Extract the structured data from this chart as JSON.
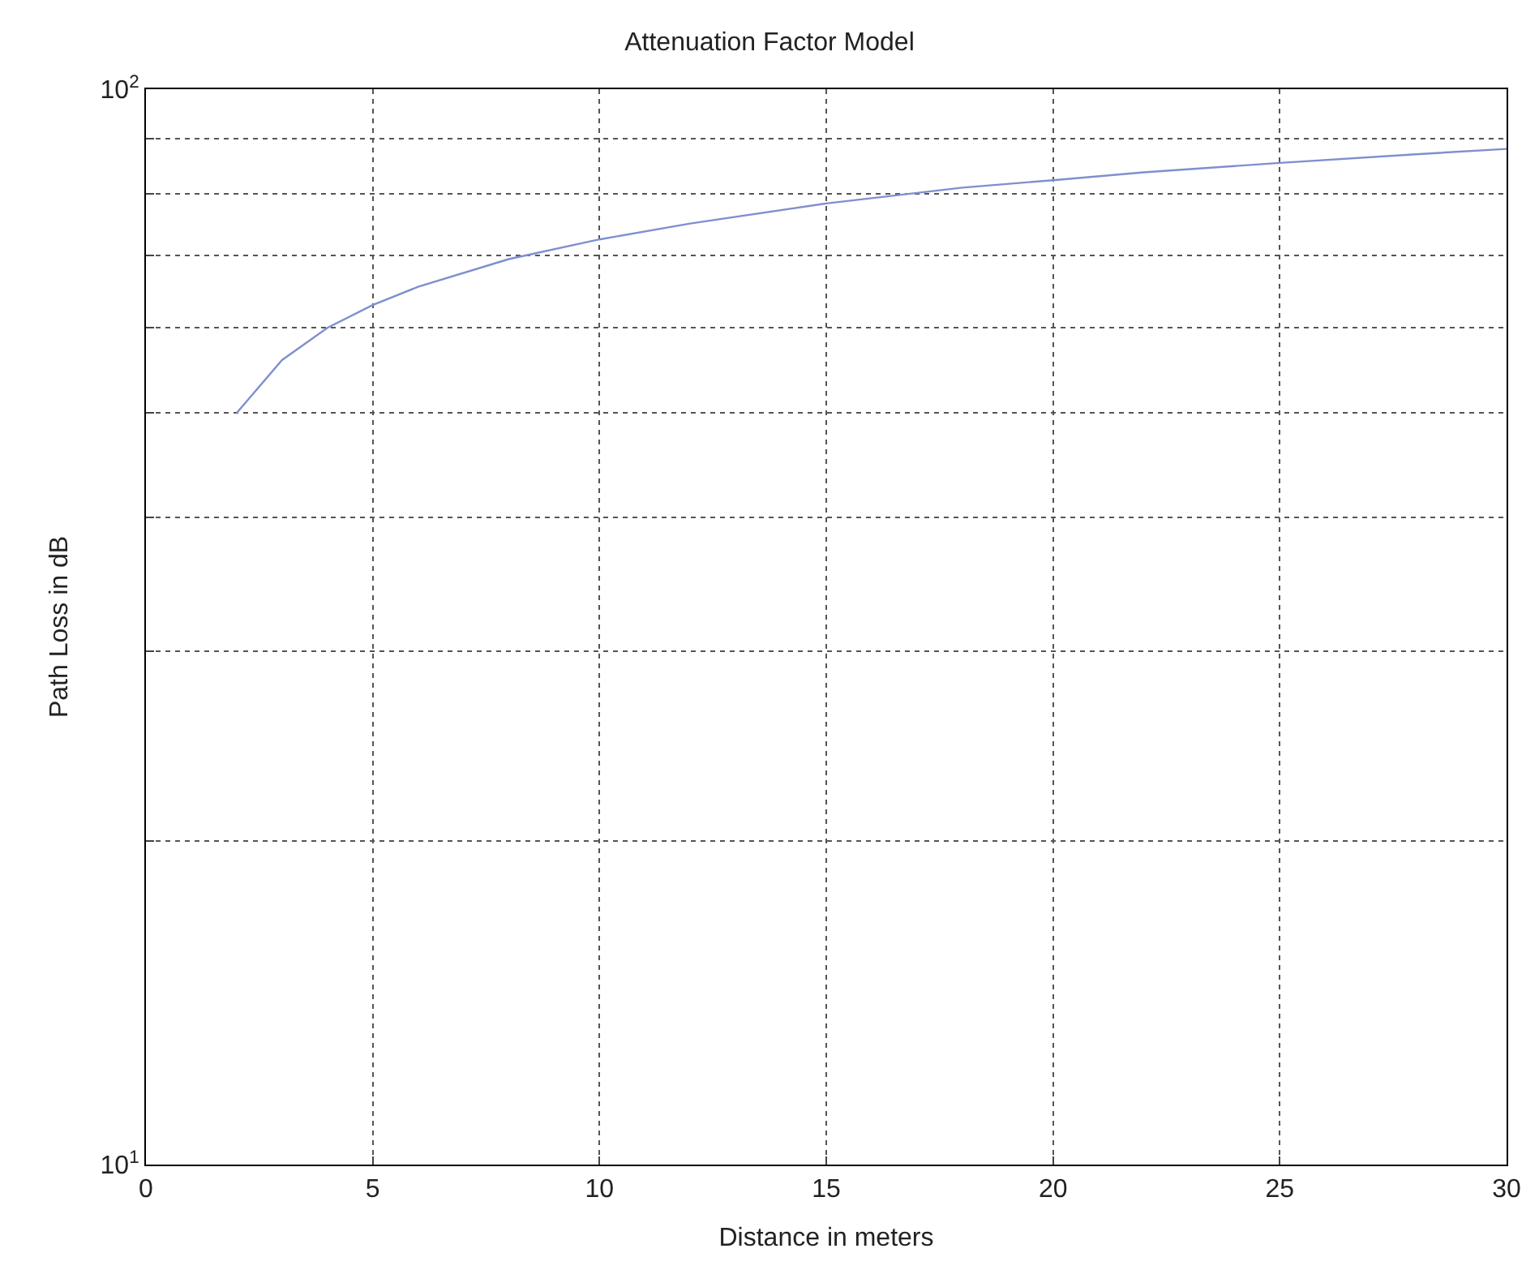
{
  "chart_data": {
    "type": "line",
    "title": "Attenuation Factor Model",
    "xlabel": "Distance in meters",
    "ylabel": "Path Loss in dB",
    "log": "y",
    "grid": true,
    "marker": "none",
    "line_style": "solid",
    "xlim": [
      0,
      30
    ],
    "xticks": [
      0,
      5,
      10,
      15,
      20,
      25,
      30
    ],
    "ylim": [
      10,
      100
    ],
    "yticks": [
      {
        "value": 10,
        "label": "10$^{1}$"
      },
      {
        "value": 20,
        "label": null
      },
      {
        "value": 30,
        "label": null
      },
      {
        "value": 40,
        "label": null
      },
      {
        "value": 50,
        "label": null
      },
      {
        "value": 60,
        "label": null
      },
      {
        "value": 70,
        "label": null
      },
      {
        "value": 80,
        "label": null
      },
      {
        "value": 90,
        "label": null
      },
      {
        "value": 100,
        "label": "10$^{2}$"
      }
    ],
    "x": [
      2,
      3,
      4,
      5,
      6,
      8,
      10,
      12,
      15,
      18,
      20,
      22,
      25,
      28,
      30
    ],
    "series": [
      {
        "color": "#7f8fcf",
        "values": [
          50,
          56,
          60,
          63,
          65.5,
          69.5,
          72.5,
          75,
          78.3,
          81,
          82.3,
          83.7,
          85.4,
          87,
          88
        ]
      }
    ]
  }
}
